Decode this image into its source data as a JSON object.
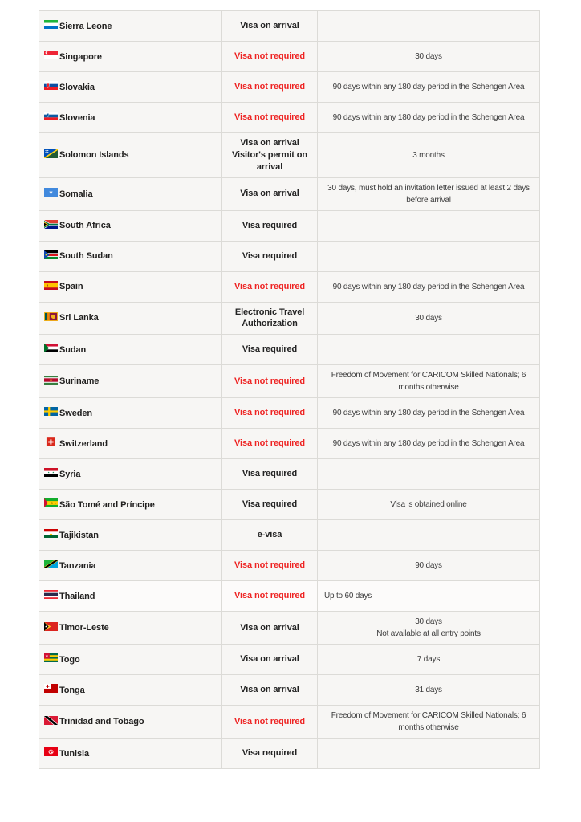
{
  "table": {
    "colors": {
      "row_background": "#f7f6f4",
      "highlight_row_background": "#fcfbfa",
      "border": "#dcdbd7",
      "status_red": "#ee2423",
      "text_dark": "#222120",
      "notes_text": "#3c3c3c"
    },
    "columns": [
      "country",
      "visa_requirement",
      "notes"
    ],
    "rows": [
      {
        "country": "Sierra Leone",
        "flag": "sierra-leone",
        "status": "Visa on arrival",
        "status_style": "default",
        "notes": "",
        "notes_align": "center",
        "highlight": false
      },
      {
        "country": "Singapore",
        "flag": "singapore",
        "status": "Visa not required",
        "status_style": "red",
        "notes": "30 days",
        "notes_align": "center",
        "highlight": false
      },
      {
        "country": "Slovakia",
        "flag": "slovakia",
        "status": "Visa not required",
        "status_style": "red",
        "notes": "90 days within any 180 day period in the Schengen Area",
        "notes_align": "center",
        "highlight": false
      },
      {
        "country": "Slovenia",
        "flag": "slovenia",
        "status": "Visa not required",
        "status_style": "red",
        "notes": "90 days within any 180 day period in the Schengen Area",
        "notes_align": "center",
        "highlight": false
      },
      {
        "country": "Solomon Islands",
        "flag": "solomon-islands",
        "status": "Visa on arrival\nVisitor's permit on arrival",
        "status_style": "default",
        "notes": "3 months",
        "notes_align": "center",
        "highlight": false
      },
      {
        "country": "Somalia",
        "flag": "somalia",
        "status": "Visa on arrival",
        "status_style": "default",
        "notes": "30 days, must hold an invitation letter issued at least 2 days before arrival",
        "notes_align": "center",
        "highlight": false
      },
      {
        "country": "South Africa",
        "flag": "south-africa",
        "status": "Visa required",
        "status_style": "default",
        "notes": "",
        "notes_align": "center",
        "highlight": false
      },
      {
        "country": "South Sudan",
        "flag": "south-sudan",
        "status": "Visa required",
        "status_style": "default",
        "notes": "",
        "notes_align": "center",
        "highlight": false
      },
      {
        "country": "Spain",
        "flag": "spain",
        "status": "Visa not required",
        "status_style": "red",
        "notes": "90 days within any 180 day period in the Schengen Area",
        "notes_align": "center",
        "highlight": false
      },
      {
        "country": "Sri Lanka",
        "flag": "sri-lanka",
        "status": "Electronic Travel Authorization",
        "status_style": "default",
        "notes": "30 days",
        "notes_align": "center",
        "highlight": false
      },
      {
        "country": "Sudan",
        "flag": "sudan",
        "status": "Visa required",
        "status_style": "default",
        "notes": "",
        "notes_align": "center",
        "highlight": false
      },
      {
        "country": "Suriname",
        "flag": "suriname",
        "status": "Visa not required",
        "status_style": "red",
        "notes": "Freedom of Movement for CARICOM Skilled Nationals;  6 months otherwise",
        "notes_align": "center",
        "highlight": false
      },
      {
        "country": "Sweden",
        "flag": "sweden",
        "status": "Visa not required",
        "status_style": "red",
        "notes": "90 days within any 180 day period in the Schengen Area",
        "notes_align": "center",
        "highlight": false
      },
      {
        "country": "Switzerland",
        "flag": "switzerland",
        "status": "Visa not required",
        "status_style": "red",
        "notes": "90 days within any 180 day period in the Schengen Area",
        "notes_align": "center",
        "highlight": false
      },
      {
        "country": "Syria",
        "flag": "syria",
        "status": "Visa required",
        "status_style": "default",
        "notes": "",
        "notes_align": "center",
        "highlight": false
      },
      {
        "country": "São Tomé and Príncipe",
        "flag": "sao-tome-and-principe",
        "status": "Visa required",
        "status_style": "default",
        "notes": "Visa is obtained online",
        "notes_align": "center",
        "highlight": false
      },
      {
        "country": "Tajikistan",
        "flag": "tajikistan",
        "status": "e-visa",
        "status_style": "default",
        "notes": "",
        "notes_align": "center",
        "highlight": false
      },
      {
        "country": "Tanzania",
        "flag": "tanzania",
        "status": "Visa not required",
        "status_style": "red",
        "notes": "90 days",
        "notes_align": "center",
        "highlight": false
      },
      {
        "country": "Thailand",
        "flag": "thailand",
        "status": "Visa not required",
        "status_style": "red",
        "notes": "Up to 60 days",
        "notes_align": "left",
        "highlight": true
      },
      {
        "country": "Timor-Leste",
        "flag": "timor-leste",
        "status": "Visa on arrival",
        "status_style": "default",
        "notes": "30 days\nNot available at all entry points",
        "notes_align": "center",
        "highlight": false
      },
      {
        "country": "Togo",
        "flag": "togo",
        "status": "Visa on arrival",
        "status_style": "default",
        "notes": "7 days",
        "notes_align": "center",
        "highlight": false
      },
      {
        "country": "Tonga",
        "flag": "tonga",
        "status": "Visa on arrival",
        "status_style": "default",
        "notes": "31 days",
        "notes_align": "center",
        "highlight": false
      },
      {
        "country": "Trinidad and Tobago",
        "flag": "trinidad-and-tobago",
        "status": "Visa not required",
        "status_style": "red",
        "notes": "Freedom of Movement for CARICOM Skilled Nationals;  6 months otherwise",
        "notes_align": "center",
        "highlight": false
      },
      {
        "country": "Tunisia",
        "flag": "tunisia",
        "status": "Visa required",
        "status_style": "default",
        "notes": "",
        "notes_align": "center",
        "highlight": false
      }
    ]
  }
}
